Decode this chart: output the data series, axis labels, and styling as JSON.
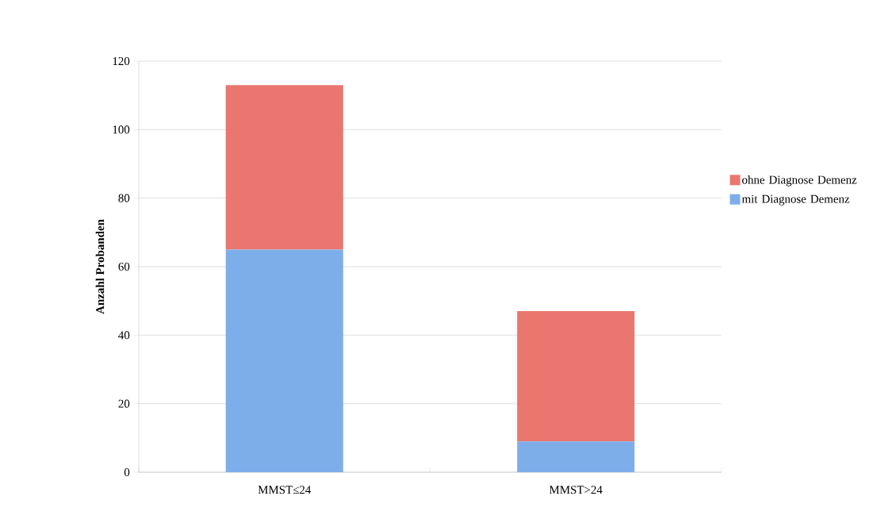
{
  "chart_data": {
    "type": "bar",
    "stacked": true,
    "ylabel": "Anzahl Probanden",
    "categories": [
      "MMST≤24",
      "MMST>24"
    ],
    "series": [
      {
        "name": "mit Diagnose Demenz",
        "color": "#7eaeea",
        "values": [
          65,
          9
        ]
      },
      {
        "name": "ohne Diagnose Demenz",
        "color": "#e9776f",
        "values": [
          48,
          38
        ]
      }
    ],
    "ylim": [
      0,
      120
    ],
    "yticks": [
      0,
      20,
      40,
      60,
      80,
      100,
      120
    ],
    "grid": "y",
    "legend": "right"
  }
}
